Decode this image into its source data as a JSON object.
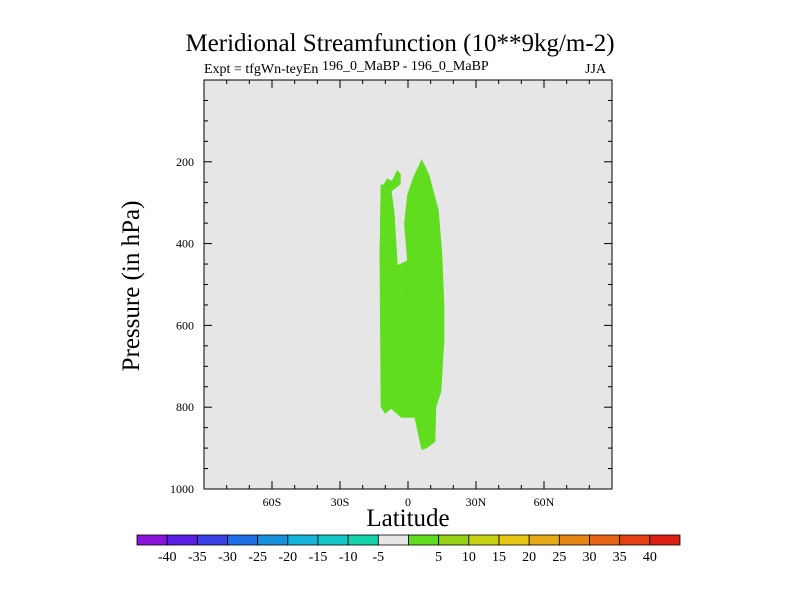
{
  "chart_data": {
    "type": "filled-contour",
    "title": "Meridional Streamfunction (10**9kg/m-2)",
    "left_subtitle": "Expt = tfgWn-teyEn",
    "center_subtitle": "196_0_MaBP - 196_0_MaBP",
    "right_subtitle": "JJA",
    "xlabel": "Latitude",
    "ylabel": "Pressure (in hPa)",
    "xlim": [
      -90,
      90
    ],
    "ylim": [
      1000,
      0
    ],
    "x_ticks": [
      {
        "value": -60,
        "label": "60S"
      },
      {
        "value": -30,
        "label": "30S"
      },
      {
        "value": 0,
        "label": "0"
      },
      {
        "value": 30,
        "label": "30N"
      },
      {
        "value": 60,
        "label": "60N"
      }
    ],
    "y_ticks": [
      {
        "value": 200,
        "label": "200"
      },
      {
        "value": 400,
        "label": "400"
      },
      {
        "value": 600,
        "label": "600"
      },
      {
        "value": 800,
        "label": "800"
      },
      {
        "value": 1000,
        "label": "1000"
      }
    ],
    "background_color": "#e6e6e6",
    "contour_regions": [
      {
        "level_range": "5 to 10",
        "color": "#5fdd1e",
        "outline": [
          [
            -11.9,
            799
          ],
          [
            -10.1,
            815
          ],
          [
            -7.4,
            803
          ],
          [
            -2.9,
            825
          ],
          [
            3.0,
            825
          ],
          [
            6.1,
            904
          ],
          [
            8.3,
            899
          ],
          [
            11.9,
            884
          ],
          [
            12.3,
            799
          ],
          [
            14.5,
            762
          ],
          [
            15.9,
            638
          ],
          [
            15.9,
            550
          ],
          [
            15.0,
            428
          ],
          [
            13.4,
            319
          ],
          [
            9.3,
            233
          ],
          [
            6.1,
            195
          ],
          [
            2.5,
            237
          ],
          [
            -0.2,
            281
          ],
          [
            -1.6,
            352
          ],
          [
            -0.2,
            442
          ],
          [
            -4.7,
            454
          ],
          [
            -6.1,
            327
          ],
          [
            -7.4,
            272
          ],
          [
            -3.4,
            254
          ],
          [
            -3.4,
            230
          ],
          [
            -4.7,
            222
          ],
          [
            -7.0,
            248
          ],
          [
            -9.2,
            242
          ],
          [
            -10.6,
            256
          ],
          [
            -11.9,
            257
          ],
          [
            -12.4,
            442
          ]
        ]
      },
      {
        "level_range": "5 to 10",
        "color": "#5fdd1e",
        "outline": [
          [
            -11.9,
            257
          ],
          [
            -10.6,
            256
          ],
          [
            -9.2,
            242
          ],
          [
            -7.0,
            248
          ],
          [
            -4.7,
            222
          ],
          [
            -3.4,
            230
          ],
          [
            -3.4,
            254
          ],
          [
            -7.4,
            272
          ],
          [
            -6.1,
            327
          ],
          [
            -4.7,
            454
          ],
          [
            -0.2,
            442
          ],
          [
            -0.2,
            542
          ],
          [
            -8.8,
            501
          ],
          [
            -12.4,
            442
          ]
        ]
      }
    ],
    "colorbar": {
      "labels": [
        "-40",
        "-35",
        "-30",
        "-25",
        "-20",
        "-15",
        "-10",
        "-5",
        "5",
        "10",
        "15",
        "20",
        "25",
        "30",
        "35",
        "40"
      ],
      "colors": [
        "#8a14dc",
        "#5a1ee6",
        "#3a3fe6",
        "#1e6ee6",
        "#1492dc",
        "#14b4dc",
        "#14c8c8",
        "#14d2aa",
        "#e6e6e6",
        "#5fdd1e",
        "#96d214",
        "#c8d214",
        "#e6c814",
        "#e6aa14",
        "#e68714",
        "#e66414",
        "#e64014",
        "#dc1e14"
      ]
    }
  }
}
